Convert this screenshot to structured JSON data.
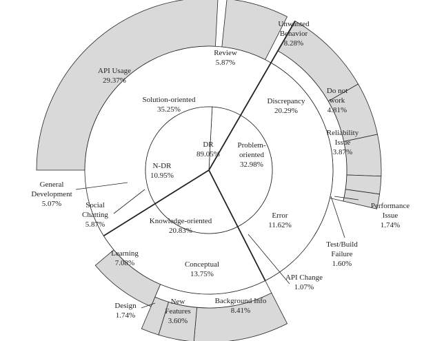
{
  "chart_data": {
    "type": "sunburst",
    "colors": {
      "fill": "#d9d9d9",
      "stroke": "#222222",
      "background": "#ffffff"
    },
    "rings": [
      {
        "level": 1,
        "nodes": [
          {
            "id": "dr",
            "name": "DR",
            "value": 89.05,
            "value_label": "89.05%"
          },
          {
            "id": "ndr",
            "name": "N-DR",
            "value": 10.95,
            "value_label": "10.95%"
          }
        ]
      },
      {
        "level": 2,
        "nodes": [
          {
            "id": "solution",
            "parent": "dr",
            "name": "Solution-oriented",
            "value": 35.25,
            "value_label": "35.25%"
          },
          {
            "id": "problem",
            "parent": "dr",
            "name": "Problem-oriented",
            "value": 32.98,
            "value_label": "32.98%"
          },
          {
            "id": "knowledge",
            "parent": "dr",
            "name": "Knowledge-oriented",
            "value": 20.83,
            "value_label": "20.83%"
          }
        ]
      },
      {
        "level": 3,
        "nodes": [
          {
            "id": "discrepancy",
            "parent": "problem",
            "name": "Discrepancy",
            "value": 20.29,
            "value_label": "20.29%"
          },
          {
            "id": "conceptual",
            "parent": "knowledge",
            "name": "Conceptual",
            "value": 13.75,
            "value_label": "13.75%"
          }
        ]
      },
      {
        "level": 4,
        "nodes": [
          {
            "id": "review",
            "parent": "solution",
            "name": "Review",
            "value": 5.87,
            "value_label": "5.87%"
          },
          {
            "id": "unwanted",
            "parent": "discrepancy",
            "name": "Unwanted Behavior",
            "value": 8.28,
            "value_label": "8.28%"
          },
          {
            "id": "donotwork",
            "parent": "discrepancy",
            "name": "Do not work",
            "value": 4.81,
            "value_label": "4.81%"
          },
          {
            "id": "reliability",
            "parent": "discrepancy",
            "name": "Reliability Issue",
            "value": 3.87,
            "value_label": "3.87%"
          },
          {
            "id": "performance",
            "parent": "discrepancy",
            "name": "Performance Issue",
            "value": 1.74,
            "value_label": "1.74%"
          },
          {
            "id": "testbuild",
            "parent": "discrepancy",
            "name": "Test/Build Failure",
            "value": 1.6,
            "value_label": "1.60%"
          },
          {
            "id": "error",
            "parent": "problem",
            "name": "Error",
            "value": 11.62,
            "value_label": "11.62%"
          },
          {
            "id": "apichange",
            "parent": "problem",
            "name": "API Change",
            "value": 1.07,
            "value_label": "1.07%"
          },
          {
            "id": "background",
            "parent": "conceptual",
            "name": "Background Info",
            "value": 8.41,
            "value_label": "8.41%"
          },
          {
            "id": "newfeatures",
            "parent": "conceptual",
            "name": "New Features",
            "value": 3.6,
            "value_label": "3.60%"
          },
          {
            "id": "design",
            "parent": "conceptual",
            "name": "Design",
            "value": 1.74,
            "value_label": "1.74%"
          },
          {
            "id": "learning",
            "parent": "knowledge",
            "name": "Learning",
            "value": 7.08,
            "value_label": "7.08%"
          },
          {
            "id": "socialchatting",
            "parent": "ndr",
            "name": "Social Chatting",
            "value": 5.87,
            "value_label": "5.87%"
          },
          {
            "id": "generaldev",
            "parent": "ndr",
            "name": "General Development",
            "value": 5.07,
            "value_label": "5.07%"
          },
          {
            "id": "apiusage",
            "parent": "solution",
            "name": "API Usage",
            "value": 29.37,
            "value_label": "29.37%"
          }
        ]
      }
    ],
    "labels": {
      "dr": [
        "DR",
        "89.05%"
      ],
      "ndr": [
        "N-DR",
        "10.95%"
      ],
      "solution": [
        "Solution-oriented",
        "35.25%"
      ],
      "problem": [
        "Problem-",
        "oriented",
        "32.98%"
      ],
      "knowledge": [
        "Knowledge-oriented",
        "20.83%"
      ],
      "discrepancy": [
        "Discrepancy",
        "20.29%"
      ],
      "conceptual": [
        "Conceptual",
        "13.75%"
      ],
      "review": [
        "Review",
        "5.87%"
      ],
      "unwanted": [
        "Unwanted",
        "Behavior",
        "8.28%"
      ],
      "donotwork": [
        "Do not",
        "work",
        "4.81%"
      ],
      "reliability": [
        "Reliability",
        "Issue",
        "3.87%"
      ],
      "performance": [
        "Performance",
        "Issue",
        "1.74%"
      ],
      "testbuild": [
        "Test/Build",
        "Failure",
        "1.60%"
      ],
      "error": [
        "Error",
        "11.62%"
      ],
      "apichange": [
        "API Change",
        "1.07%"
      ],
      "background": [
        "Background Info",
        "8.41%"
      ],
      "newfeatures": [
        "New",
        "Features",
        "3.60%"
      ],
      "design": [
        "Design",
        "1.74%"
      ],
      "learning": [
        "Learning",
        "7.08%"
      ],
      "socialchatting": [
        "Social",
        "Chatting",
        "5.87%"
      ],
      "generaldev": [
        "General",
        "Development",
        "5.07%"
      ],
      "apiusage": [
        "API Usage",
        "29.37%"
      ]
    }
  }
}
